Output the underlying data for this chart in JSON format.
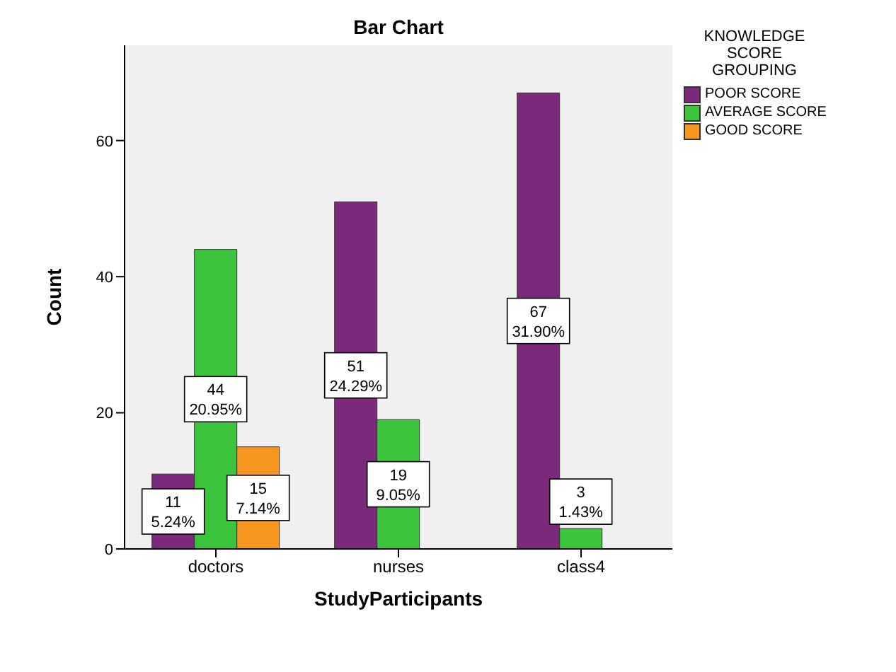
{
  "chart_data": {
    "type": "bar",
    "title": "Bar Chart",
    "xlabel": "StudyParticipants",
    "ylabel": "Count",
    "legend_title": "KNOWLEDGE SCORE GROUPING",
    "categories": [
      "doctors",
      "nurses",
      "class4"
    ],
    "series": [
      {
        "name": "POOR SCORE",
        "color": "#7b2a7b",
        "values": [
          11,
          51,
          67
        ],
        "value_labels": [
          "11\n5.24%",
          "51\n24.29%",
          "67\n31.90%"
        ]
      },
      {
        "name": "AVERAGE SCORE",
        "color": "#3cc43c",
        "values": [
          44,
          19,
          3
        ],
        "value_labels": [
          "44\n20.95%",
          "19\n9.05%",
          "3\n1.43%"
        ]
      },
      {
        "name": "GOOD SCORE",
        "color": "#f7961e",
        "values": [
          15,
          null,
          null
        ],
        "value_labels": [
          "15\n7.14%",
          null,
          null
        ]
      }
    ],
    "ylim": [
      0,
      74
    ],
    "yticks": [
      0,
      20,
      40,
      60
    ],
    "grid": false,
    "legend": "top right"
  }
}
